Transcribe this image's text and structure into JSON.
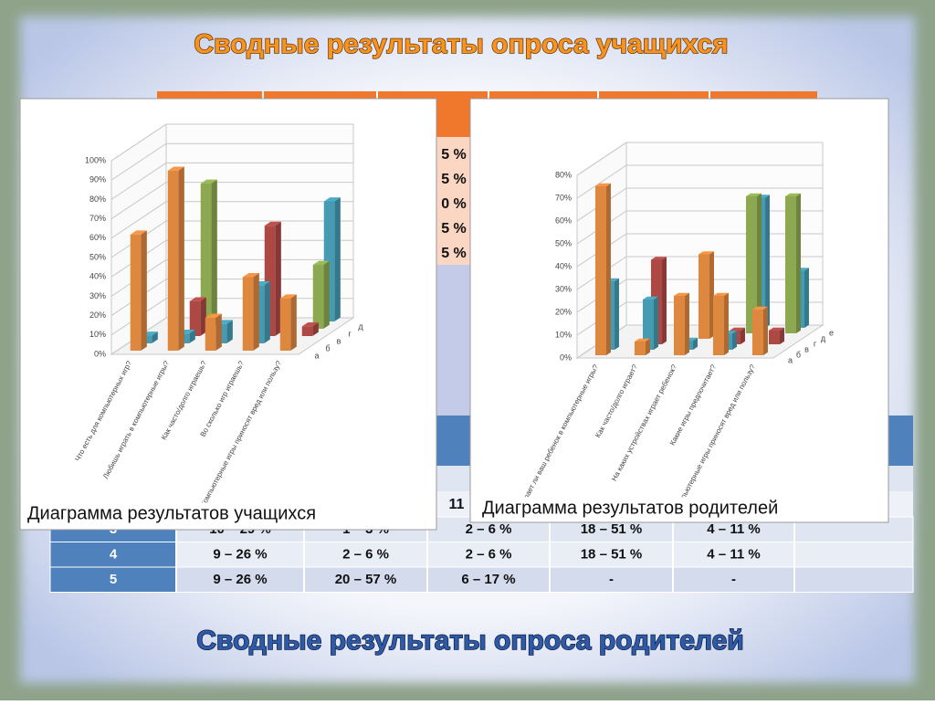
{
  "slide": {
    "title": "Сводные результаты опроса учащихся",
    "bottom_title": "Сводные результаты опроса родителей"
  },
  "top_table": {
    "fragments": [
      "5 %",
      "5 %",
      "0 %",
      "5 %",
      "5 %"
    ]
  },
  "bottom_table": {
    "fragment": "11",
    "rows": [
      [
        "3",
        "10 – 29 %",
        "1 – 3 %",
        "2 – 6 %",
        "18 – 51 %",
        "4 – 11 %"
      ],
      [
        "4",
        "9 – 26 %",
        "2 – 6 %",
        "2 – 6 %",
        "18 – 51 %",
        "4 – 11 %"
      ],
      [
        "5",
        "9 – 26 %",
        "20 – 57 %",
        "6 – 17 %",
        "-",
        "-"
      ]
    ]
  },
  "chart_data": [
    {
      "type": "bar",
      "title": "Диаграмма результатов учащихся",
      "categories": [
        "Что есть для компьютерных игр?",
        "Любишь играть в компьютерные игры?",
        "Как часто/долго играешь?",
        "Во сколько игр играешь?",
        "Компьютерные игры приносят вред или пользу?"
      ],
      "series": [
        {
          "name": "а",
          "color": "#f79646",
          "values": [
            60,
            93,
            17,
            38,
            27
          ]
        },
        {
          "name": "б",
          "color": "#4bacc6",
          "values": [
            4,
            5,
            10,
            30,
            0
          ]
        },
        {
          "name": "в",
          "color": "#c0504d",
          "values": [
            0,
            18,
            0,
            57,
            5
          ]
        },
        {
          "name": "г",
          "color": "#9bbb59",
          "values": [
            0,
            75,
            0,
            0,
            33
          ]
        },
        {
          "name": "д",
          "color": "#4bacc6",
          "values": [
            0,
            0,
            0,
            0,
            62
          ]
        }
      ],
      "ylim": [
        0,
        100
      ],
      "yticks": [
        {
          "value": 0,
          "label": "0%"
        },
        {
          "value": 10,
          "label": "10%"
        },
        {
          "value": 20,
          "label": "20%"
        },
        {
          "value": 30,
          "label": "30%"
        },
        {
          "value": 40,
          "label": "40%"
        },
        {
          "value": 50,
          "label": "50%"
        },
        {
          "value": 60,
          "label": "60%"
        },
        {
          "value": 70,
          "label": "70%"
        },
        {
          "value": 80,
          "label": "80%"
        },
        {
          "value": 90,
          "label": "90%"
        },
        {
          "value": 100,
          "label": "100%"
        }
      ],
      "grid": true
    },
    {
      "type": "bar",
      "title": "Диаграмма результатов родителей",
      "categories": [
        "Играет ли ваш ребенок в компьютерные игры?",
        "Как часто/долго играет?",
        "На каких устройствах играет ребенок?",
        "Какие игры предпочитает?",
        "Компьютерные игры приносят вред или пользу?"
      ],
      "series": [
        {
          "name": "а",
          "color": "#f79646",
          "values": [
            74,
            6,
            26,
            26,
            20
          ]
        },
        {
          "name": "б",
          "color": "#4bacc6",
          "values": [
            30,
            22,
            4,
            7,
            0
          ]
        },
        {
          "name": "в",
          "color": "#c0504d",
          "values": [
            0,
            37,
            0,
            6,
            6
          ]
        },
        {
          "name": "г",
          "color": "#f79646",
          "values": [
            0,
            0,
            37,
            0,
            0
          ]
        },
        {
          "name": "д",
          "color": "#9bbb59",
          "values": [
            0,
            0,
            0,
            60,
            60
          ]
        },
        {
          "name": "е",
          "color": "#4bacc6",
          "values": [
            0,
            0,
            0,
            57,
            25
          ]
        }
      ],
      "ylim": [
        0,
        80
      ],
      "yticks": [
        {
          "value": 0,
          "label": "0%"
        },
        {
          "value": 10,
          "label": "10%"
        },
        {
          "value": 20,
          "label": "20%"
        },
        {
          "value": 30,
          "label": "30%"
        },
        {
          "value": 40,
          "label": "40%"
        },
        {
          "value": 50,
          "label": "50%"
        },
        {
          "value": 60,
          "label": "60%"
        },
        {
          "value": 70,
          "label": "70%"
        },
        {
          "value": 80,
          "label": "80%"
        }
      ],
      "grid": true
    }
  ]
}
